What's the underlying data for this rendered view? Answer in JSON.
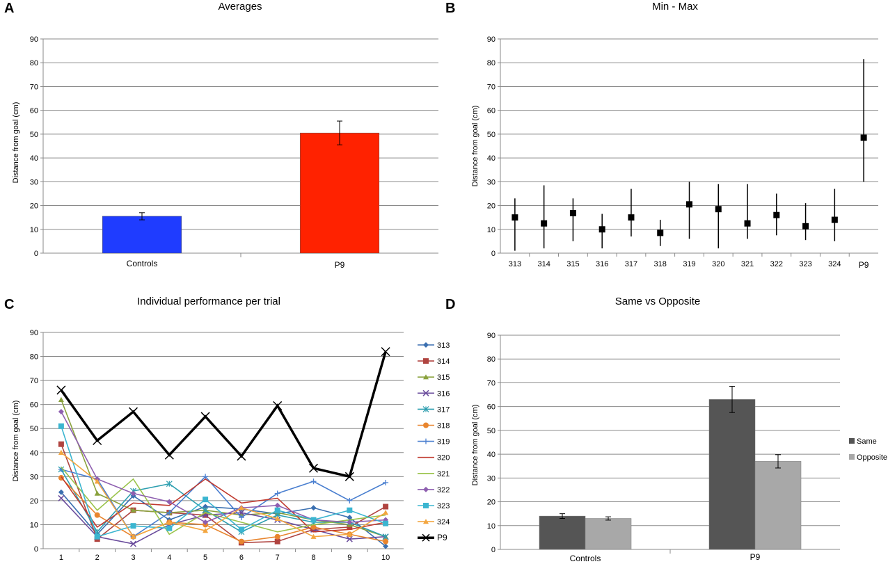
{
  "chart_data": [
    {
      "panel": "A",
      "type": "bar",
      "title": "Averages",
      "ylabel": "Distance from goal (cm)",
      "xlabel": "",
      "ylim": [
        0,
        90
      ],
      "yticks": [
        0,
        10,
        20,
        30,
        40,
        50,
        60,
        70,
        80,
        90
      ],
      "grid": true,
      "categories": [
        "Controls",
        "P9"
      ],
      "values": [
        15.5,
        50.5
      ],
      "errors": [
        1.5,
        5
      ],
      "colors": [
        "#1f3cff",
        "#ff2200"
      ]
    },
    {
      "panel": "B",
      "type": "scatter",
      "title": "Min - Max",
      "ylabel": "Distance from goal (cm)",
      "xlabel": "",
      "ylim": [
        0,
        90
      ],
      "yticks": [
        0,
        10,
        20,
        30,
        40,
        50,
        60,
        70,
        80,
        90
      ],
      "grid": true,
      "categories": [
        "313",
        "314",
        "315",
        "316",
        "317",
        "318",
        "319",
        "320",
        "321",
        "322",
        "323",
        "324",
        "P9"
      ],
      "values": [
        15,
        12.5,
        16.8,
        10,
        15,
        8.5,
        20.5,
        18.5,
        12.5,
        16,
        11.3,
        14,
        48.5
      ],
      "mins": [
        1,
        2,
        5,
        2,
        7,
        3,
        6,
        2,
        6,
        7.5,
        5.5,
        5,
        30
      ],
      "maxs": [
        23,
        28.5,
        23,
        16.5,
        27,
        14,
        30,
        29,
        29,
        25,
        21,
        27,
        81.5
      ]
    },
    {
      "panel": "C",
      "type": "line",
      "title": "Individual performance per trial",
      "ylabel": "Distance from goal (cm)",
      "xlabel": "",
      "ylim": [
        0,
        90
      ],
      "yticks": [
        0,
        10,
        20,
        30,
        40,
        50,
        60,
        70,
        80,
        90
      ],
      "grid": true,
      "legend_position": "right",
      "x": [
        1,
        2,
        3,
        4,
        5,
        6,
        7,
        8,
        9,
        10
      ],
      "series": [
        {
          "name": "313",
          "color": "#3a6fb0",
          "marker": "diamond",
          "values": [
            23.5,
            6,
            22,
            12,
            17.5,
            16.5,
            14.5,
            17,
            13,
            1
          ]
        },
        {
          "name": "314",
          "color": "#b04440",
          "marker": "square",
          "values": [
            43.5,
            4,
            16,
            15,
            14,
            2.5,
            3,
            8,
            9,
            17.5
          ]
        },
        {
          "name": "315",
          "color": "#8aa23d",
          "marker": "triangle",
          "values": [
            62,
            23,
            16,
            15,
            16,
            14,
            15,
            12,
            10,
            5
          ]
        },
        {
          "name": "316",
          "color": "#6a4c9c",
          "marker": "x",
          "values": [
            21,
            5,
            2,
            10,
            14,
            15,
            12,
            8,
            4,
            5
          ]
        },
        {
          "name": "317",
          "color": "#2e9fb0",
          "marker": "star",
          "values": [
            33,
            7,
            24,
            27,
            16,
            7,
            14,
            11,
            11,
            5
          ]
        },
        {
          "name": "318",
          "color": "#e8852e",
          "marker": "circle",
          "values": [
            29.5,
            14,
            5,
            11,
            10,
            3,
            5,
            9,
            6,
            3
          ]
        },
        {
          "name": "319",
          "color": "#4a7fd0",
          "marker": "plus",
          "values": [
            33,
            29,
            5,
            15,
            30,
            13,
            23,
            28,
            20,
            27.5
          ]
        },
        {
          "name": "320",
          "color": "#c03a2f",
          "marker": "none",
          "values": [
            30,
            9,
            19,
            18,
            29,
            19,
            21,
            7,
            8,
            11
          ]
        },
        {
          "name": "321",
          "color": "#9ac34a",
          "marker": "none",
          "values": [
            34,
            16,
            29,
            6,
            15,
            11,
            7,
            10,
            12,
            14
          ]
        },
        {
          "name": "322",
          "color": "#8e5fb0",
          "marker": "diamond",
          "values": [
            57,
            29,
            23,
            19.5,
            11,
            17,
            18,
            12,
            11,
            12
          ]
        },
        {
          "name": "323",
          "color": "#3bb5d0",
          "marker": "square",
          "values": [
            51,
            5,
            9.5,
            8.5,
            20.5,
            8,
            16,
            12,
            16,
            10.5
          ]
        },
        {
          "name": "324",
          "color": "#f3a640",
          "marker": "triangle",
          "values": [
            40,
            28,
            5,
            11,
            7.5,
            17,
            12.5,
            5,
            6,
            15
          ]
        },
        {
          "name": "P9",
          "color": "#000000",
          "marker": "x",
          "bold": true,
          "values": [
            66,
            45,
            57,
            39,
            55,
            38.5,
            59.5,
            33.5,
            30,
            82
          ]
        }
      ]
    },
    {
      "panel": "D",
      "type": "bar",
      "title": "Same vs Opposite",
      "ylabel": "Distance from goal (cm)",
      "xlabel": "",
      "ylim": [
        0,
        90
      ],
      "yticks": [
        0,
        10,
        20,
        30,
        40,
        50,
        60,
        70,
        80,
        90
      ],
      "grid": true,
      "legend_position": "right",
      "categories": [
        "Controls",
        "P9"
      ],
      "series": [
        {
          "name": "Same",
          "color": "#555555",
          "values": [
            14,
            63
          ],
          "errors": [
            1,
            5.5
          ]
        },
        {
          "name": "Opposite",
          "color": "#a8a8a8",
          "values": [
            13,
            37
          ],
          "errors": [
            0.7,
            2.8
          ]
        }
      ]
    }
  ],
  "panel_letters": [
    "A",
    "B",
    "C",
    "D"
  ]
}
